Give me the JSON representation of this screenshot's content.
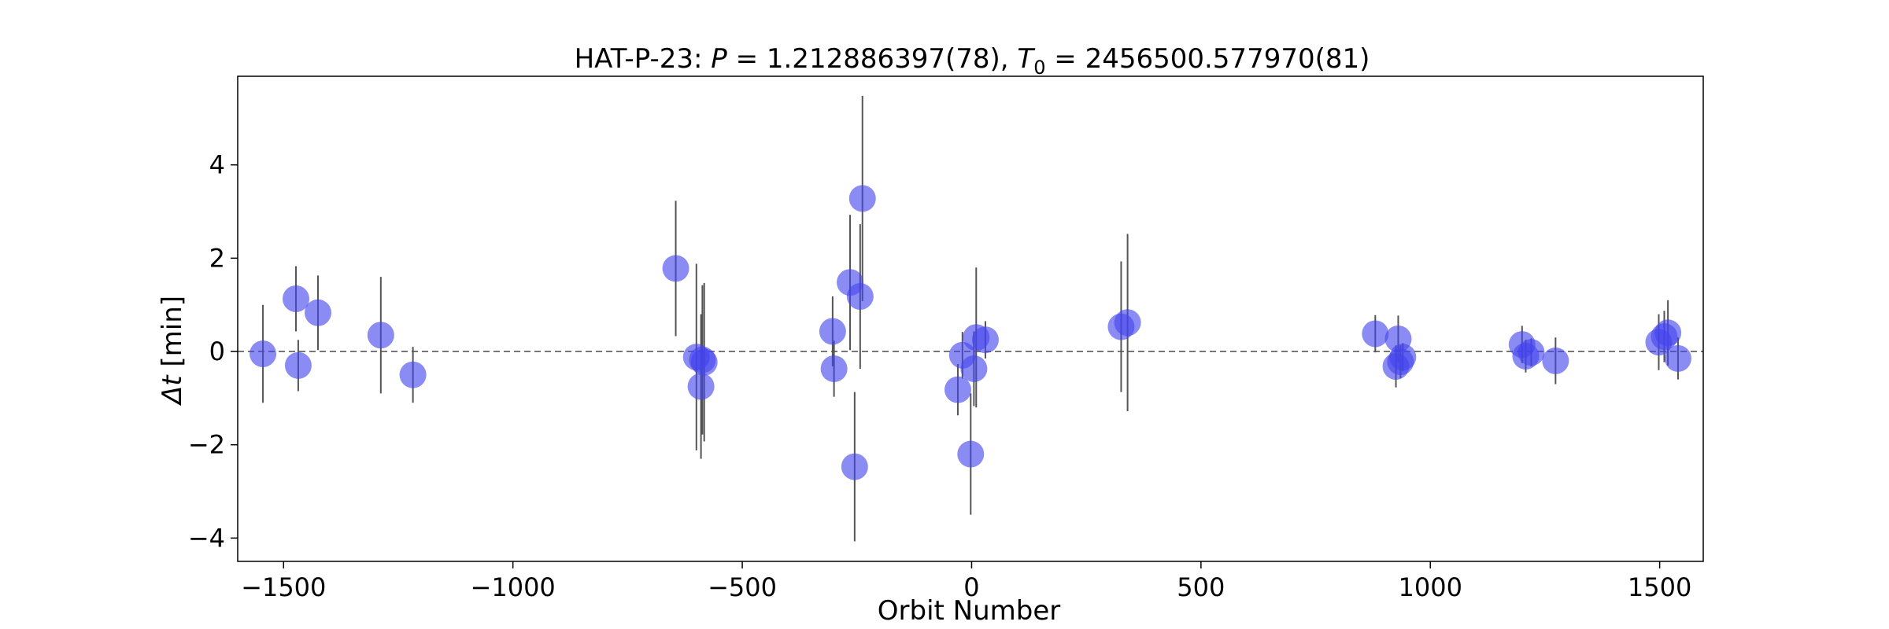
{
  "chart_data": {
    "type": "scatter",
    "title": "HAT-P-23: P = 1.212886397(78), T0 = 2456500.577970(81)",
    "title_parts": {
      "prefix": "HAT-P-23: ",
      "p_symbol": "P",
      "p_value": " = 1.212886397(78), ",
      "t_symbol": "T",
      "t_subscript": "0",
      "t_value": " = 2456500.577970(81)"
    },
    "xlabel": "Orbit Number",
    "ylabel_symbol": "Δt",
    "ylabel_unit": " [min]",
    "xlim": [
      -1600,
      1595
    ],
    "ylim": [
      -4.5,
      5.9
    ],
    "xticks": [
      -1500,
      -1000,
      -500,
      0,
      500,
      1000,
      1500
    ],
    "xtick_labels": [
      "−1500",
      "−1000",
      "−500",
      "0",
      "500",
      "1000",
      "1500"
    ],
    "yticks": [
      -4,
      -2,
      0,
      2,
      4
    ],
    "ytick_labels": [
      "−4",
      "−2",
      "0",
      "2",
      "4"
    ],
    "grid": false,
    "reference_line": {
      "y": 0,
      "style": "dashed"
    },
    "marker_color": "#4444ee",
    "errorbar_color": "#555555",
    "points": [
      {
        "x": -1545,
        "y": -0.05,
        "err": 1.05
      },
      {
        "x": -1473,
        "y": 1.13,
        "err": 0.7
      },
      {
        "x": -1468,
        "y": -0.3,
        "err": 0.55
      },
      {
        "x": -1425,
        "y": 0.83,
        "err": 0.8
      },
      {
        "x": -1288,
        "y": 0.35,
        "err": 1.25
      },
      {
        "x": -1218,
        "y": -0.5,
        "err": 0.6
      },
      {
        "x": -645,
        "y": 1.78,
        "err": 1.45
      },
      {
        "x": -600,
        "y": -0.12,
        "err": 2.0
      },
      {
        "x": -590,
        "y": -0.75,
        "err": 1.55
      },
      {
        "x": -587,
        "y": -0.18,
        "err": 1.6
      },
      {
        "x": -583,
        "y": -0.23,
        "err": 1.7
      },
      {
        "x": -303,
        "y": 0.43,
        "err": 0.75
      },
      {
        "x": -300,
        "y": -0.37,
        "err": 0.6
      },
      {
        "x": -265,
        "y": 1.48,
        "err": 1.45
      },
      {
        "x": -255,
        "y": -2.47,
        "err": 1.6
      },
      {
        "x": -243,
        "y": 1.18,
        "err": 1.55
      },
      {
        "x": -238,
        "y": 3.28,
        "err": 2.2
      },
      {
        "x": -30,
        "y": -0.82,
        "err": 0.55
      },
      {
        "x": -20,
        "y": -0.08,
        "err": 0.5
      },
      {
        "x": -2,
        "y": -2.2,
        "err": 1.3
      },
      {
        "x": 5,
        "y": -0.37,
        "err": 0.8
      },
      {
        "x": 10,
        "y": 0.3,
        "err": 1.5
      },
      {
        "x": 30,
        "y": 0.25,
        "err": 0.4
      },
      {
        "x": 326,
        "y": 0.53,
        "err": 1.4
      },
      {
        "x": 340,
        "y": 0.62,
        "err": 1.9
      },
      {
        "x": 880,
        "y": 0.38,
        "err": 0.4
      },
      {
        "x": 925,
        "y": -0.32,
        "err": 0.45
      },
      {
        "x": 930,
        "y": 0.27,
        "err": 0.5
      },
      {
        "x": 935,
        "y": -0.22,
        "err": 0.35
      },
      {
        "x": 940,
        "y": -0.12,
        "err": 0.3
      },
      {
        "x": 1200,
        "y": 0.15,
        "err": 0.4
      },
      {
        "x": 1208,
        "y": -0.1,
        "err": 0.35
      },
      {
        "x": 1220,
        "y": -0.02,
        "err": 0.3
      },
      {
        "x": 1273,
        "y": -0.2,
        "err": 0.5
      },
      {
        "x": 1498,
        "y": 0.2,
        "err": 0.6
      },
      {
        "x": 1510,
        "y": 0.32,
        "err": 0.55
      },
      {
        "x": 1518,
        "y": 0.4,
        "err": 0.7
      },
      {
        "x": 1540,
        "y": -0.15,
        "err": 0.45
      }
    ]
  }
}
